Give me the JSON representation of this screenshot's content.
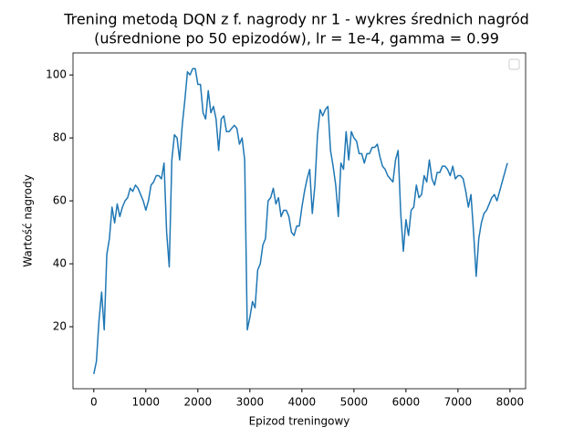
{
  "chart_data": {
    "type": "line",
    "title_lines": [
      "Trening metodą DQN z f. nagrody nr 1 - wykres średnich nagród",
      "(uśrednione po 50 epizodów), lr = 1e-4, gamma = 0.99"
    ],
    "xlabel": "Epizod treningowy",
    "ylabel": "Wartość nagrody",
    "xlim": [
      -400,
      8300
    ],
    "ylim": [
      0.3,
      107
    ],
    "xticks": [
      0,
      1000,
      2000,
      3000,
      4000,
      5000,
      6000,
      7000,
      8000
    ],
    "yticks": [
      20,
      40,
      60,
      80,
      100
    ],
    "x": [
      0,
      50,
      100,
      150,
      200,
      250,
      300,
      350,
      400,
      450,
      500,
      550,
      600,
      650,
      700,
      750,
      800,
      850,
      900,
      950,
      1000,
      1050,
      1100,
      1150,
      1200,
      1250,
      1300,
      1350,
      1400,
      1450,
      1500,
      1550,
      1600,
      1650,
      1700,
      1750,
      1800,
      1850,
      1900,
      1950,
      2000,
      2050,
      2100,
      2150,
      2200,
      2250,
      2300,
      2350,
      2400,
      2450,
      2500,
      2550,
      2600,
      2650,
      2700,
      2750,
      2800,
      2850,
      2900,
      2950,
      3000,
      3050,
      3100,
      3150,
      3200,
      3250,
      3300,
      3350,
      3400,
      3450,
      3500,
      3550,
      3600,
      3650,
      3700,
      3750,
      3800,
      3850,
      3900,
      3950,
      4000,
      4050,
      4100,
      4150,
      4200,
      4250,
      4300,
      4350,
      4400,
      4450,
      4500,
      4550,
      4600,
      4650,
      4700,
      4750,
      4800,
      4850,
      4900,
      4950,
      5000,
      5050,
      5100,
      5150,
      5200,
      5250,
      5300,
      5350,
      5400,
      5450,
      5500,
      5550,
      5600,
      5650,
      5700,
      5750,
      5800,
      5850,
      5900,
      5950,
      6000,
      6050,
      6100,
      6150,
      6200,
      6250,
      6300,
      6350,
      6400,
      6450,
      6500,
      6550,
      6600,
      6650,
      6700,
      6750,
      6800,
      6850,
      6900,
      6950,
      7000,
      7050,
      7100,
      7150,
      7200,
      7250,
      7300,
      7350,
      7400,
      7450,
      7500,
      7550,
      7600,
      7650,
      7700,
      7750,
      7800,
      7850,
      7950
    ],
    "series": [
      {
        "color": "#1f77b4",
        "values": [
          5,
          9,
          22,
          31,
          19,
          43,
          48,
          58,
          53,
          59,
          55,
          58,
          60,
          61,
          64,
          63,
          65,
          64,
          62,
          60,
          57,
          60,
          65,
          66,
          68,
          68,
          67,
          72,
          50,
          39,
          73,
          81,
          80,
          73,
          84,
          92,
          101,
          100,
          102,
          102,
          97,
          97,
          88,
          86,
          95,
          88,
          90,
          86,
          76,
          86,
          87,
          82,
          82,
          83,
          84,
          83,
          78,
          80,
          73,
          19,
          23,
          28,
          26,
          38,
          40,
          46,
          48,
          60,
          61,
          64,
          59,
          61,
          55,
          57,
          57,
          55,
          50,
          49,
          52,
          52,
          58,
          63,
          67,
          70,
          56,
          65,
          81,
          89,
          87,
          89,
          90,
          76,
          71,
          65,
          55,
          72,
          70,
          82,
          73,
          82,
          80,
          79,
          75,
          75,
          72,
          75,
          75,
          77,
          77,
          78,
          74,
          71,
          70,
          68,
          67,
          66,
          73,
          76,
          56,
          44,
          54,
          49,
          57,
          58,
          65,
          61,
          62,
          68,
          66,
          73,
          67,
          65,
          69,
          69,
          71,
          71,
          70,
          68,
          71,
          67,
          68,
          68,
          67,
          63,
          58,
          62,
          50,
          36,
          48,
          53,
          56,
          57,
          59,
          61,
          62,
          60,
          63,
          66,
          72
        ]
      }
    ]
  }
}
